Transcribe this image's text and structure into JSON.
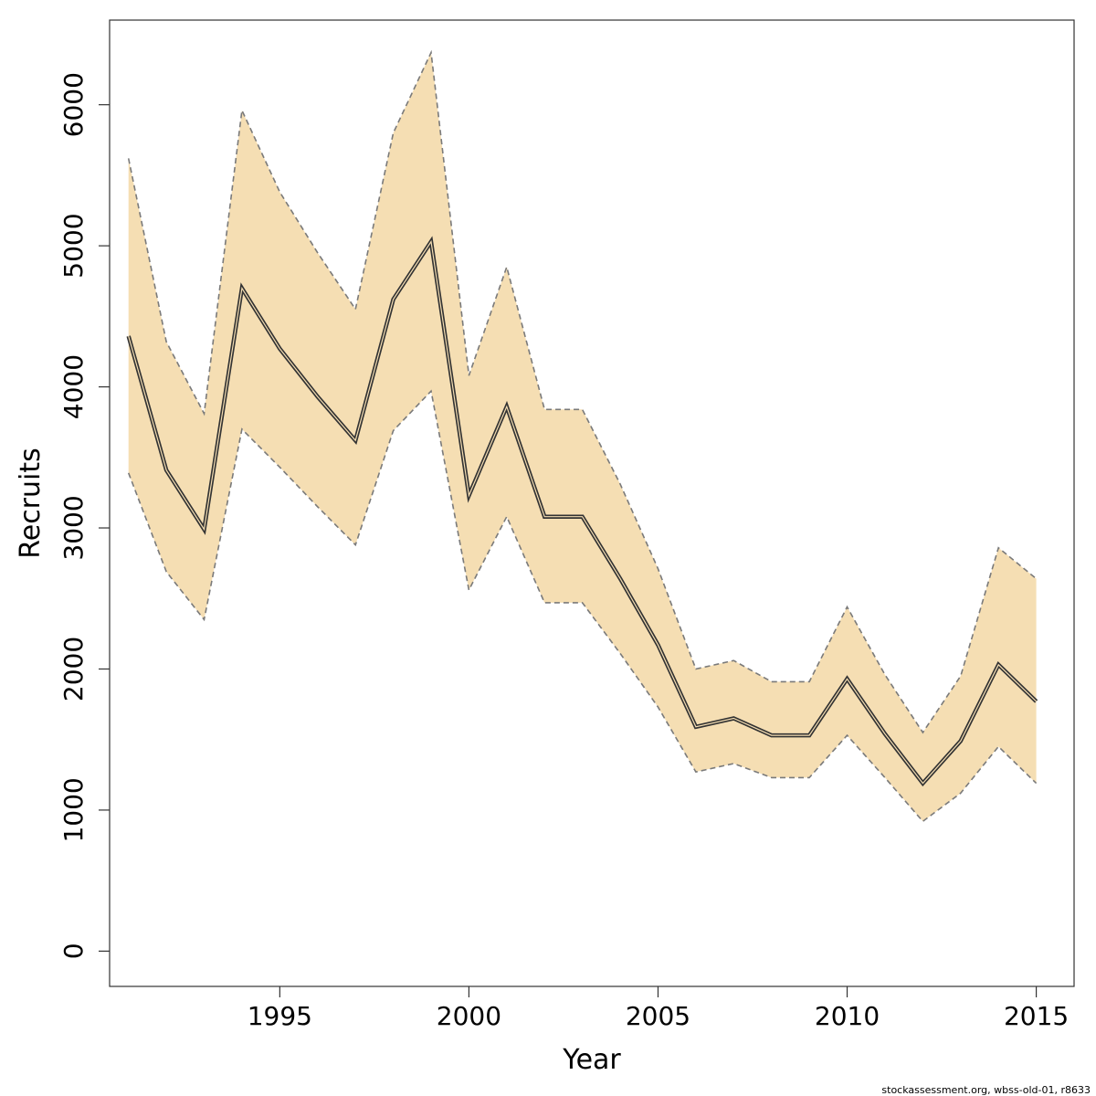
{
  "chart_data": {
    "type": "line",
    "xlabel": "Year",
    "ylabel": "Recruits",
    "xlim": [
      1990.5,
      2016
    ],
    "ylim": [
      -250,
      6600
    ],
    "x_ticks": [
      1995,
      2000,
      2005,
      2010,
      2015
    ],
    "y_ticks": [
      0,
      1000,
      2000,
      3000,
      4000,
      5000,
      6000
    ],
    "grid": false,
    "legend": "none",
    "x": [
      1991,
      1992,
      1993,
      1994,
      1995,
      1996,
      1997,
      1998,
      1999,
      2000,
      2001,
      2002,
      2003,
      2004,
      2005,
      2006,
      2007,
      2008,
      2009,
      2010,
      2011,
      2012,
      2013,
      2014,
      2015
    ],
    "series": [
      {
        "role": "estimate",
        "values": [
          4360,
          3410,
          2990,
          4700,
          4270,
          3930,
          3620,
          4620,
          5030,
          3230,
          3860,
          3080,
          3080,
          2640,
          2170,
          1590,
          1650,
          1530,
          1530,
          1930,
          1540,
          1190,
          1490,
          2030,
          1770
        ]
      },
      {
        "role": "upper",
        "values": [
          5620,
          4320,
          3810,
          5960,
          5380,
          4950,
          4550,
          5800,
          6370,
          4080,
          4850,
          3840,
          3840,
          3310,
          2710,
          2000,
          2060,
          1910,
          1910,
          2440,
          1960,
          1550,
          1950,
          2860,
          2640
        ]
      },
      {
        "role": "lower",
        "values": [
          3390,
          2690,
          2350,
          3700,
          3430,
          3150,
          2880,
          3690,
          3970,
          2560,
          3080,
          2470,
          2470,
          2110,
          1730,
          1270,
          1330,
          1230,
          1230,
          1530,
          1230,
          920,
          1120,
          1450,
          1190
        ]
      }
    ],
    "colors": {
      "band_fill": "#f5deb3",
      "band_edge": "#7a7a7a",
      "line": "#333333",
      "axis": "#333333"
    }
  },
  "credit": "stockassessment.org, wbss-old-01, r8633"
}
